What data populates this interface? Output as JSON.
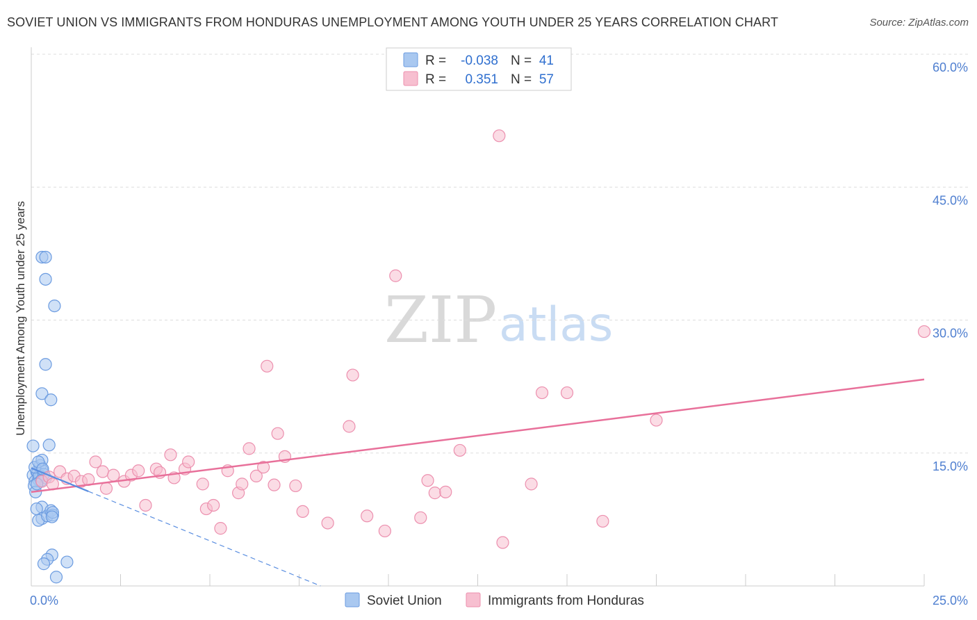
{
  "title": "SOVIET UNION VS IMMIGRANTS FROM HONDURAS UNEMPLOYMENT AMONG YOUTH UNDER 25 YEARS CORRELATION CHART",
  "source": "Source: ZipAtlas.com",
  "watermark": {
    "zip": "ZIP",
    "atlas": "atlas"
  },
  "colors": {
    "soviet_fill": "#a9c8f0",
    "soviet_stroke": "#6b9be0",
    "soviet_line": "#5a8ee0",
    "honduras_fill": "#f7bfd0",
    "honduras_stroke": "#ec8fae",
    "honduras_line": "#e8709a",
    "tick_text": "#4f7fd0",
    "grid": "#dddddd"
  },
  "chart_data": {
    "type": "scatter",
    "title": "SOVIET UNION VS IMMIGRANTS FROM HONDURAS UNEMPLOYMENT AMONG YOUTH UNDER 25 YEARS CORRELATION CHART",
    "xlabel": "",
    "ylabel": "Unemployment Among Youth under 25 years",
    "xlim": [
      0,
      25
    ],
    "ylim": [
      0,
      60
    ],
    "x_tick_labels": [
      "0.0%",
      "25.0%"
    ],
    "y_ticks": [
      15,
      30,
      45,
      60
    ],
    "y_tick_labels": [
      "15.0%",
      "30.0%",
      "45.0%",
      "60.0%"
    ],
    "legend": [
      {
        "series": "Soviet Union",
        "r_label": "R =",
        "r": "-0.038",
        "n_label": "N =",
        "n": "41"
      },
      {
        "series": "Immigrants from Honduras",
        "r_label": "R =",
        "r": "0.351",
        "n_label": "N =",
        "n": "57"
      }
    ],
    "series": [
      {
        "name": "Soviet Union",
        "trend": {
          "x": [
            0,
            8.1
          ],
          "y": [
            13.3,
            0
          ],
          "style": "solid-then-dashed",
          "solid_until_x": 1.6
        },
        "points": [
          [
            0.05,
            12.5
          ],
          [
            0.1,
            11.8
          ],
          [
            0.15,
            12.9
          ],
          [
            0.2,
            12.0
          ],
          [
            0.08,
            11.3
          ],
          [
            0.12,
            10.6
          ],
          [
            0.18,
            12.8
          ],
          [
            0.25,
            13.6
          ],
          [
            0.3,
            13.1
          ],
          [
            0.22,
            12.4
          ],
          [
            0.35,
            12.6
          ],
          [
            0.4,
            12.2
          ],
          [
            0.28,
            11.9
          ],
          [
            0.16,
            11.5
          ],
          [
            0.1,
            13.4
          ],
          [
            0.05,
            15.8
          ],
          [
            0.3,
            14.2
          ],
          [
            0.2,
            14.0
          ],
          [
            0.32,
            13.2
          ],
          [
            0.5,
            15.9
          ],
          [
            0.3,
            8.9
          ],
          [
            0.15,
            8.7
          ],
          [
            0.3,
            7.6
          ],
          [
            0.2,
            7.4
          ],
          [
            0.45,
            7.9
          ],
          [
            0.55,
            8.5
          ],
          [
            0.6,
            8.0
          ],
          [
            0.6,
            8.3
          ],
          [
            0.58,
            7.8
          ],
          [
            0.58,
            3.5
          ],
          [
            0.45,
            3.0
          ],
          [
            0.35,
            2.5
          ],
          [
            1.0,
            2.7
          ],
          [
            0.7,
            1.0
          ],
          [
            0.3,
            37.1
          ],
          [
            0.4,
            37.1
          ],
          [
            0.4,
            34.6
          ],
          [
            0.65,
            31.6
          ],
          [
            0.4,
            25.0
          ],
          [
            0.3,
            21.7
          ],
          [
            0.55,
            21.0
          ]
        ]
      },
      {
        "name": "Immigrants from Honduras",
        "trend": {
          "x": [
            0,
            25
          ],
          "y": [
            10.6,
            23.3
          ]
        },
        "points": [
          [
            0.3,
            11.8
          ],
          [
            0.5,
            12.3
          ],
          [
            0.6,
            11.5
          ],
          [
            0.8,
            12.9
          ],
          [
            1.0,
            12.1
          ],
          [
            1.2,
            12.4
          ],
          [
            1.4,
            11.8
          ],
          [
            1.6,
            12.0
          ],
          [
            1.8,
            14.0
          ],
          [
            2.0,
            12.9
          ],
          [
            2.1,
            11.0
          ],
          [
            2.3,
            12.5
          ],
          [
            2.6,
            11.8
          ],
          [
            2.8,
            12.5
          ],
          [
            3.0,
            13.0
          ],
          [
            3.2,
            9.1
          ],
          [
            3.5,
            13.2
          ],
          [
            3.6,
            12.8
          ],
          [
            3.9,
            14.8
          ],
          [
            4.0,
            12.2
          ],
          [
            4.3,
            13.2
          ],
          [
            4.4,
            14.0
          ],
          [
            4.8,
            11.5
          ],
          [
            4.9,
            8.7
          ],
          [
            5.1,
            9.1
          ],
          [
            5.3,
            6.5
          ],
          [
            5.5,
            13.0
          ],
          [
            5.8,
            10.5
          ],
          [
            5.9,
            11.5
          ],
          [
            6.1,
            15.5
          ],
          [
            6.3,
            12.4
          ],
          [
            6.5,
            13.4
          ],
          [
            6.6,
            24.8
          ],
          [
            6.8,
            11.4
          ],
          [
            6.9,
            17.2
          ],
          [
            7.1,
            14.6
          ],
          [
            7.4,
            11.3
          ],
          [
            7.6,
            8.4
          ],
          [
            8.3,
            7.1
          ],
          [
            8.9,
            18.0
          ],
          [
            9.0,
            23.8
          ],
          [
            9.4,
            7.9
          ],
          [
            9.9,
            6.2
          ],
          [
            10.2,
            35.0
          ],
          [
            10.9,
            7.7
          ],
          [
            11.1,
            11.9
          ],
          [
            11.3,
            10.5
          ],
          [
            11.6,
            10.6
          ],
          [
            12.0,
            15.3
          ],
          [
            13.1,
            50.8
          ],
          [
            13.2,
            4.9
          ],
          [
            14.0,
            11.5
          ],
          [
            14.3,
            21.8
          ],
          [
            15.0,
            21.8
          ],
          [
            16.0,
            7.3
          ],
          [
            17.5,
            18.7
          ],
          [
            25.0,
            28.7
          ]
        ]
      }
    ]
  }
}
